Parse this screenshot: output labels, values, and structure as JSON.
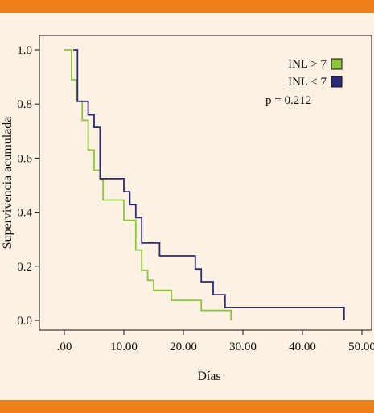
{
  "chart_data": {
    "type": "line",
    "step": true,
    "title": "",
    "xlabel": "Días",
    "ylabel": "Supervivencia acumulada",
    "xlim": [
      0,
      50
    ],
    "ylim": [
      0,
      1
    ],
    "x_ticks": [
      0,
      10,
      20,
      30,
      40,
      50
    ],
    "x_tick_labels": [
      ".00",
      "10.00",
      "20.00",
      "30.00",
      "40.00",
      "50.00"
    ],
    "y_ticks": [
      0,
      0.2,
      0.4,
      0.6,
      0.8,
      1.0
    ],
    "y_tick_labels": [
      "0.0",
      "0.2",
      "0.4",
      "0.6",
      "0.8",
      "1.0"
    ],
    "grid": false,
    "legend_position": "top-right",
    "annotation": "p = 0.212",
    "series": [
      {
        "name": "INL > 7",
        "color": "#8cc63f",
        "points": [
          [
            0,
            1.0
          ],
          [
            1.2,
            1.0
          ],
          [
            1.2,
            0.89
          ],
          [
            2.0,
            0.89
          ],
          [
            2.0,
            0.81
          ],
          [
            3.0,
            0.81
          ],
          [
            3.0,
            0.74
          ],
          [
            4.0,
            0.74
          ],
          [
            4.0,
            0.63
          ],
          [
            5.0,
            0.63
          ],
          [
            5.0,
            0.555
          ],
          [
            6.0,
            0.555
          ],
          [
            6.0,
            0.52
          ],
          [
            6.5,
            0.52
          ],
          [
            6.5,
            0.445
          ],
          [
            10.0,
            0.445
          ],
          [
            10.0,
            0.37
          ],
          [
            12.0,
            0.37
          ],
          [
            12.0,
            0.26
          ],
          [
            13.0,
            0.26
          ],
          [
            13.0,
            0.185
          ],
          [
            14.0,
            0.185
          ],
          [
            14.0,
            0.148
          ],
          [
            15.0,
            0.148
          ],
          [
            15.0,
            0.111
          ],
          [
            18.0,
            0.111
          ],
          [
            18.0,
            0.074
          ],
          [
            23.0,
            0.074
          ],
          [
            23.0,
            0.037
          ],
          [
            28.0,
            0.037
          ],
          [
            28.0,
            0.0
          ]
        ]
      },
      {
        "name": "INL < 7",
        "color": "#2b2a7c",
        "points": [
          [
            1.5,
            1.0
          ],
          [
            2.2,
            1.0
          ],
          [
            2.2,
            0.81
          ],
          [
            4.0,
            0.81
          ],
          [
            4.0,
            0.76
          ],
          [
            5.0,
            0.76
          ],
          [
            5.0,
            0.714
          ],
          [
            6.0,
            0.714
          ],
          [
            6.0,
            0.524
          ],
          [
            10.0,
            0.524
          ],
          [
            10.0,
            0.476
          ],
          [
            11.0,
            0.476
          ],
          [
            11.0,
            0.428
          ],
          [
            12.0,
            0.428
          ],
          [
            12.0,
            0.38
          ],
          [
            13.0,
            0.38
          ],
          [
            13.0,
            0.286
          ],
          [
            16.0,
            0.286
          ],
          [
            16.0,
            0.238
          ],
          [
            22.0,
            0.238
          ],
          [
            22.0,
            0.19
          ],
          [
            23.0,
            0.19
          ],
          [
            23.0,
            0.143
          ],
          [
            25.0,
            0.143
          ],
          [
            25.0,
            0.095
          ],
          [
            27.0,
            0.095
          ],
          [
            27.0,
            0.048
          ],
          [
            47.0,
            0.048
          ],
          [
            47.0,
            0.0
          ]
        ]
      }
    ]
  }
}
